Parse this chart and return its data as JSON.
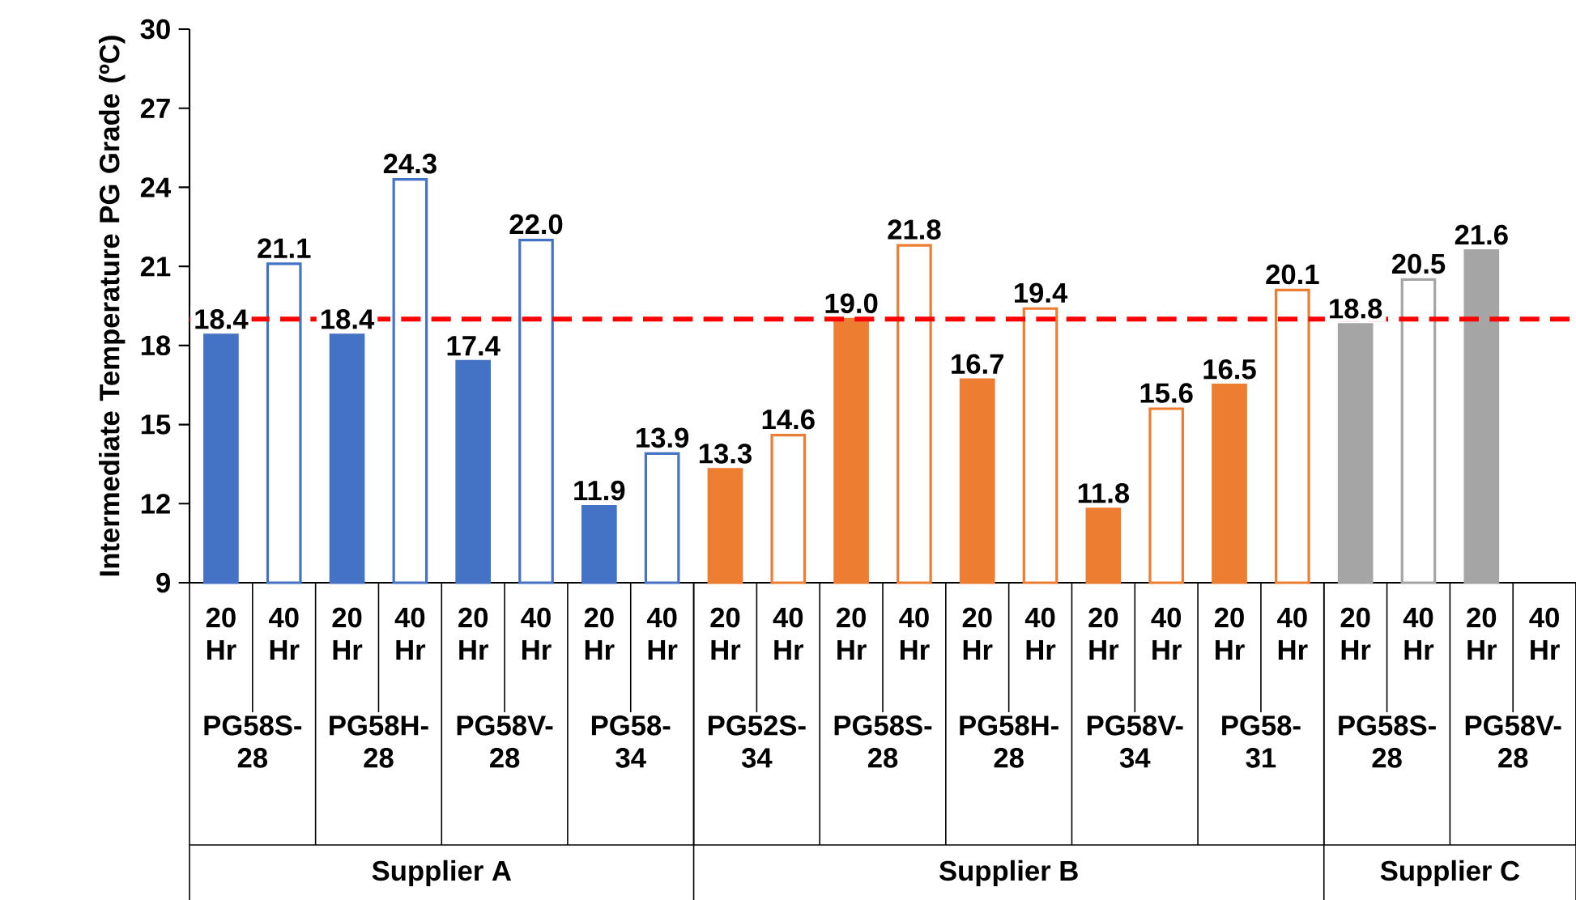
{
  "chart_data": {
    "type": "bar",
    "ylabel": "Intermediate Temperature PG Grade (ºC)",
    "categories": [
      "PG58S-28",
      "PG58H-28",
      "PG58V-28",
      "PG58-34",
      "PG52S-34",
      "PG58S-28",
      "PG58H-28",
      "PG58V-34",
      "PG58-31",
      "PG58S-28",
      "PG58V-28"
    ],
    "series": [
      {
        "name": "20 Hr",
        "colors": [
          "#4472c4",
          "#4472c4",
          "#4472c4",
          "#4472c4",
          "#ed7d31",
          "#ed7d31",
          "#ed7d31",
          "#ed7d31",
          "#ed7d31",
          "#a5a5a5",
          "#a5a5a5"
        ],
        "values": [
          18.4,
          18.4,
          17.4,
          11.9,
          13.3,
          19.0,
          16.7,
          11.8,
          16.5,
          18.8,
          21.6
        ],
        "value_labels": [
          "18.4",
          "18.4",
          "17.4",
          "11.9",
          "13.3",
          "19.0",
          "16.7",
          "11.8",
          "16.5",
          "18.8",
          "21.6"
        ]
      },
      {
        "name": "40 Hr",
        "colors": [
          "#4472c4",
          "#4472c4",
          "#4472c4",
          "#4472c4",
          "#ed7d31",
          "#ed7d31",
          "#ed7d31",
          "#ed7d31",
          "#ed7d31",
          "#a5a5a5",
          "#a5a5a5"
        ],
        "values": [
          21.1,
          24.3,
          22.0,
          13.9,
          14.6,
          21.8,
          19.4,
          15.6,
          20.1,
          20.5,
          null
        ],
        "value_labels": [
          "21.1",
          "24.3",
          "22.0",
          "13.9",
          "14.6",
          "21.8",
          "19.4",
          "15.6",
          "20.1",
          "20.5",
          null
        ]
      }
    ],
    "ylim": [
      9,
      30
    ],
    "yticks": [
      9,
      12,
      15,
      18,
      21,
      24,
      27,
      30
    ],
    "ref_lines": [
      {
        "axis": "y",
        "value": 19,
        "color": "#ff0000",
        "line_style": "dashed"
      }
    ],
    "annotations": [
      "Supplier A",
      "Supplier B",
      "Supplier C"
    ]
  }
}
